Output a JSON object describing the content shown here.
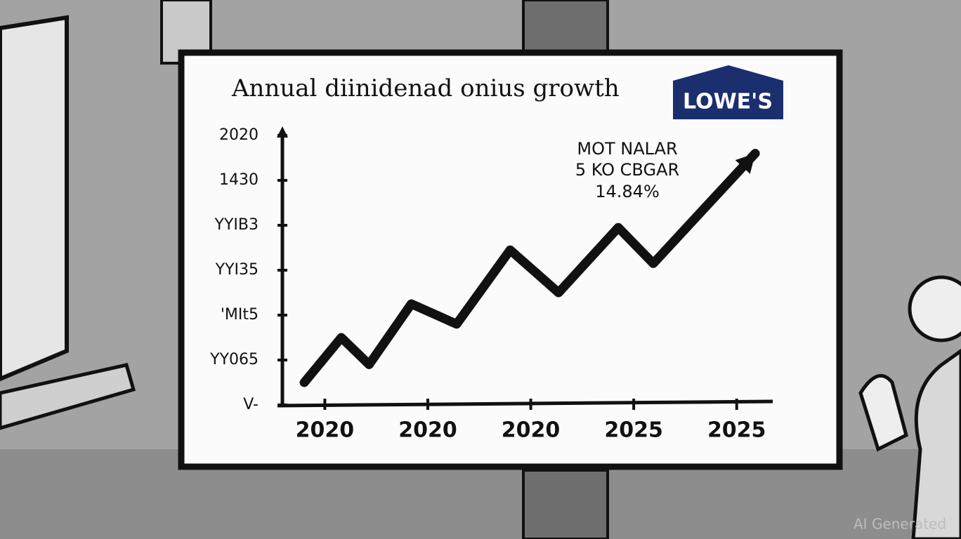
{
  "chart_data": {
    "type": "line",
    "title": "Annual diinidenad onius growth",
    "logo": "LOWE'S",
    "annotation": [
      "MOT NALAR",
      "5 KO CBGAR",
      "14.84%"
    ],
    "watermark": "AI Generated",
    "x": [
      -0.2,
      0.16,
      0.43,
      0.84,
      1.28,
      1.8,
      2.27,
      2.85,
      3.19,
      4.18
    ],
    "values": [
      0.5,
      1.5,
      0.9,
      2.25,
      1.8,
      3.45,
      2.5,
      3.95,
      3.15,
      5.6
    ],
    "color": "#111111",
    "xlim": [
      -0.46,
      4.35
    ],
    "xticks": [
      {
        "value": 0,
        "label": "2020"
      },
      {
        "value": 1,
        "label": "2020"
      },
      {
        "value": 2,
        "label": "2020"
      },
      {
        "value": 3,
        "label": "2025"
      },
      {
        "value": 4,
        "label": "2025"
      }
    ],
    "ylim": [
      0,
      6
    ],
    "yticks": [
      {
        "value": 0,
        "label": "V-"
      },
      {
        "value": 1,
        "label": "YY065"
      },
      {
        "value": 2,
        "label": "'MIt5"
      },
      {
        "value": 3,
        "label": "YYI35"
      },
      {
        "value": 4,
        "label": "YYIB3"
      },
      {
        "value": 5,
        "label": "1430"
      },
      {
        "value": 6,
        "label": "2020"
      }
    ]
  }
}
